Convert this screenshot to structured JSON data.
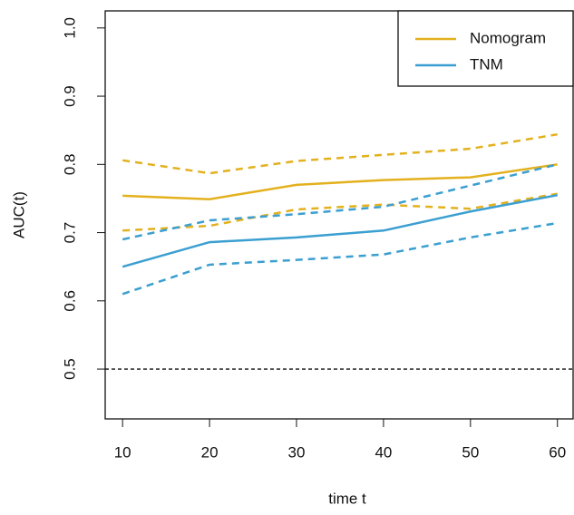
{
  "chart_data": {
    "type": "line",
    "x_label": "time t",
    "y_label": "AUC(t)",
    "x": [
      10,
      20,
      30,
      40,
      50,
      60
    ],
    "series": [
      {
        "name": "Nomogram",
        "color": "#e3b11e",
        "values": [
          0.754,
          0.749,
          0.77,
          0.777,
          0.781,
          0.8
        ],
        "upper": [
          0.806,
          0.787,
          0.805,
          0.814,
          0.823,
          0.844
        ],
        "lower": [
          0.703,
          0.71,
          0.734,
          0.741,
          0.735,
          0.757
        ]
      },
      {
        "name": "TNM",
        "color": "#3b9fd1",
        "values": [
          0.65,
          0.686,
          0.693,
          0.703,
          0.731,
          0.755
        ],
        "upper": [
          0.69,
          0.718,
          0.727,
          0.738,
          0.769,
          0.8
        ],
        "lower": [
          0.61,
          0.653,
          0.66,
          0.668,
          0.693,
          0.714
        ]
      }
    ],
    "reference_line": 0.5,
    "xlim": [
      8,
      61.8
    ],
    "ylim": [
      0.427,
      1.025
    ],
    "xticks": [
      10,
      20,
      30,
      40,
      50,
      60
    ],
    "yticks": [
      0.5,
      0.6,
      0.7,
      0.8,
      0.9,
      {
        "value": 1,
        "label": "1.0"
      }
    ],
    "legend": "top-right"
  }
}
